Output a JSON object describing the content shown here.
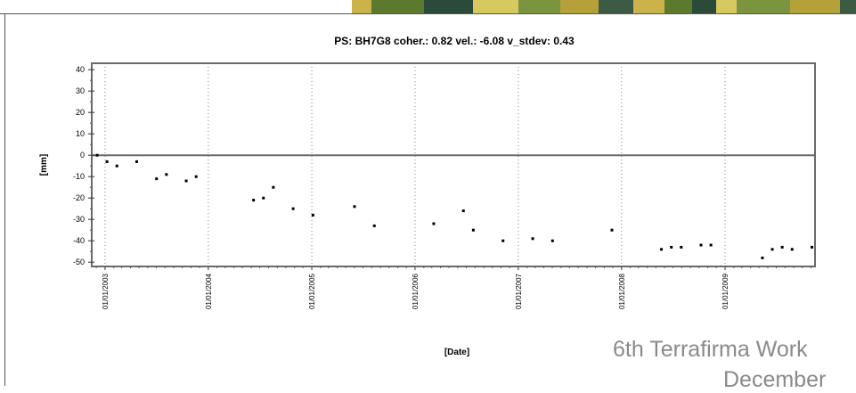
{
  "chart_data": {
    "type": "scatter",
    "title": "PS: BH7G8 coher.: 0.82 vel.: -6.08 v_stdev: 0.43",
    "xlabel": "[Date]",
    "ylabel": "[mm]",
    "ylim": [
      -50,
      40
    ],
    "yticks": [
      40,
      30,
      20,
      10,
      0,
      -10,
      -20,
      -30,
      -40,
      -50
    ],
    "xlim": [
      "2002-11-15",
      "2009-11-15"
    ],
    "xticks": [
      "2003-01-01",
      "2004-01-01",
      "2005-01-01",
      "2006-01-01",
      "2007-01-01",
      "2008-01-01",
      "2009-01-01"
    ],
    "xtick_labels": [
      "01/01/2003",
      "01/01/2004",
      "01/01/2005",
      "01/01/2006",
      "01/01/2007",
      "01/01/2008",
      "01/01/2009"
    ],
    "grid": "vertical dotted at year ticks",
    "reference_line": 0,
    "marker_color": "#000000",
    "series": [
      {
        "points": [
          {
            "x": "2002-12-04",
            "y": 0
          },
          {
            "x": "2003-01-08",
            "y": -3
          },
          {
            "x": "2003-02-12",
            "y": -5
          },
          {
            "x": "2003-04-23",
            "y": -3
          },
          {
            "x": "2003-07-02",
            "y": -11
          },
          {
            "x": "2003-08-06",
            "y": -9
          },
          {
            "x": "2003-10-15",
            "y": -12
          },
          {
            "x": "2003-11-19",
            "y": -10
          },
          {
            "x": "2004-06-09",
            "y": -21
          },
          {
            "x": "2004-07-14",
            "y": -20
          },
          {
            "x": "2004-08-18",
            "y": -15
          },
          {
            "x": "2004-10-27",
            "y": -25
          },
          {
            "x": "2005-01-05",
            "y": -28
          },
          {
            "x": "2005-06-01",
            "y": -24
          },
          {
            "x": "2005-08-10",
            "y": -33
          },
          {
            "x": "2006-03-08",
            "y": -32
          },
          {
            "x": "2006-06-21",
            "y": -26
          },
          {
            "x": "2006-07-26",
            "y": -35
          },
          {
            "x": "2006-11-08",
            "y": -40
          },
          {
            "x": "2007-02-21",
            "y": -39
          },
          {
            "x": "2007-05-02",
            "y": -40
          },
          {
            "x": "2007-11-28",
            "y": -35
          },
          {
            "x": "2008-05-21",
            "y": -44
          },
          {
            "x": "2008-06-25",
            "y": -43
          },
          {
            "x": "2008-07-30",
            "y": -43
          },
          {
            "x": "2008-10-08",
            "y": -42
          },
          {
            "x": "2008-11-12",
            "y": -42
          },
          {
            "x": "2009-05-13",
            "y": -48
          },
          {
            "x": "2009-06-17",
            "y": -44
          },
          {
            "x": "2009-07-22",
            "y": -43
          },
          {
            "x": "2009-08-26",
            "y": -44
          },
          {
            "x": "2009-11-04",
            "y": -43
          }
        ]
      }
    ]
  },
  "overlay": {
    "line1": "6th Terrafirma Work",
    "line2": "December"
  },
  "decor": {
    "map_strip_colors": [
      "#c9b34a",
      "#5c7a2e",
      "#2b4a3a",
      "#d8c860",
      "#7a9440",
      "#b5a03a",
      "#3d5a44"
    ]
  }
}
